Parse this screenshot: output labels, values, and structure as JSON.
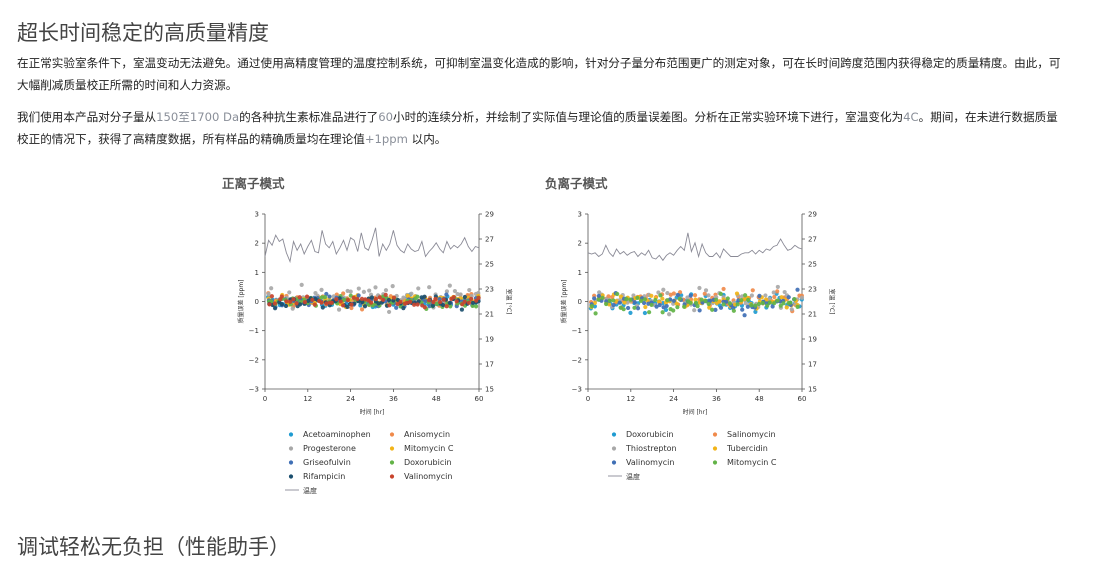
{
  "page": {
    "title": "超长时间稳定的高质量精度",
    "paragraph1": "在正常实验室条件下，室温变动无法避免。通过使用高精度管理的温度控制系统，可抑制室温变化造成的影响，针对分子量分布范围更广的测定对象，可在长时间跨度范围内获得稳定的质量精度。由此，可大幅削减质量校正所需的时间和人力资源。",
    "paragraph2": {
      "part1": "我们使用本产品对分子量从",
      "range": "150至1700 Da",
      "part2": "的各种抗生素标准品进行了",
      "hours": "60",
      "part3": "小时的连续分析，并绘制了实际值与理论值的质量误差图。分析在正常实验环境下进行，室温变化为",
      "temp": "4C",
      "part4": "。期间，在未进行数据质量校正的情况下，获得了高精度数据，所有样品的精确质量均在理论值",
      "ppm": "+1ppm",
      "part5": " 以内。"
    },
    "next_section_title": "调试轻松无负担（性能助手）"
  },
  "colors": {
    "temperature_line": "#8a8a96",
    "axis": "#555555"
  },
  "chart_data": [
    {
      "type": "scatter",
      "title": "正离子模式",
      "xlabel": "时间 [hr]",
      "ylabel": "质量误差 [ppm]",
      "y2label": "室温 [°C]",
      "xlim": [
        0,
        60
      ],
      "ylim": [
        -3,
        3
      ],
      "y2lim": [
        15,
        29
      ],
      "xticks": [
        0,
        12,
        24,
        36,
        48,
        60
      ],
      "yticks": [
        -3,
        -2,
        -1,
        0,
        1,
        2,
        3
      ],
      "y2ticks": [
        15,
        17,
        19,
        21,
        23,
        25,
        27,
        29
      ],
      "series": [
        {
          "name": "Acetoaminophen",
          "color": "#1f9bd1",
          "center": 0.0,
          "spread": 0.12,
          "seed": 11
        },
        {
          "name": "Anisomycin",
          "color": "#f08a4b",
          "center": 0.05,
          "spread": 0.12,
          "seed": 12
        },
        {
          "name": "Progesterone",
          "color": "#a8a8a8",
          "center": 0.15,
          "spread": 0.22,
          "seed": 13
        },
        {
          "name": "Mitomycin C",
          "color": "#f2b418",
          "center": 0.05,
          "spread": 0.1,
          "seed": 14
        },
        {
          "name": "Griseofulvin",
          "color": "#3f6fb5",
          "center": 0.0,
          "spread": 0.1,
          "seed": 15
        },
        {
          "name": "Doxorubicin",
          "color": "#62b347",
          "center": 0.0,
          "spread": 0.1,
          "seed": 16
        },
        {
          "name": "Rifampicin",
          "color": "#1a4e6e",
          "center": -0.05,
          "spread": 0.1,
          "seed": 17
        },
        {
          "name": "Valinomycin",
          "color": "#c8432c",
          "center": 0.0,
          "spread": 0.1,
          "seed": 18
        }
      ],
      "temperature": {
        "name": "温度",
        "x": [
          0,
          1,
          2,
          3,
          4,
          5,
          6,
          7,
          8,
          9,
          10,
          11,
          12,
          13,
          14,
          15,
          16,
          17,
          18,
          19,
          20,
          21,
          22,
          23,
          24,
          25,
          26,
          27,
          28,
          29,
          30,
          31,
          32,
          33,
          34,
          35,
          36,
          37,
          38,
          39,
          40,
          41,
          42,
          43,
          44,
          45,
          46,
          47,
          48,
          49,
          50,
          51,
          52,
          53,
          54,
          55,
          56,
          57,
          58,
          59,
          60
        ],
        "y": [
          25.6,
          26.9,
          26.5,
          27.3,
          26.8,
          27.0,
          25.9,
          25.2,
          26.8,
          26.1,
          26.6,
          25.8,
          26.4,
          26.9,
          26.0,
          25.9,
          27.7,
          26.6,
          26.3,
          26.8,
          25.8,
          26.3,
          26.9,
          26.1,
          27.1,
          26.9,
          26.0,
          27.5,
          26.3,
          26.1,
          26.9,
          27.9,
          25.6,
          26.6,
          26.1,
          26.6,
          27.7,
          26.5,
          26.1,
          25.9,
          26.6,
          26.2,
          26.0,
          26.1,
          26.8,
          25.6,
          26.0,
          26.3,
          26.7,
          26.2,
          25.9,
          26.8,
          26.2,
          26.5,
          26.3,
          26.6,
          27.1,
          26.4,
          26.0,
          26.4,
          26.3
        ]
      }
    },
    {
      "type": "scatter",
      "title": "负离子模式",
      "xlabel": "时间 [hr]",
      "ylabel": "质量误差 [ppm]",
      "y2label": "室温 [°C]",
      "xlim": [
        0,
        60
      ],
      "ylim": [
        -3,
        3
      ],
      "y2lim": [
        15,
        29
      ],
      "xticks": [
        0,
        12,
        24,
        36,
        48,
        60
      ],
      "yticks": [
        -3,
        -2,
        -1,
        0,
        1,
        2,
        3
      ],
      "y2ticks": [
        15,
        17,
        19,
        21,
        23,
        25,
        27,
        29
      ],
      "series": [
        {
          "name": "Doxorubicin",
          "color": "#1f9bd1",
          "center": 0.0,
          "spread": 0.14,
          "seed": 21
        },
        {
          "name": "Salinomycin",
          "color": "#f08a4b",
          "center": 0.05,
          "spread": 0.14,
          "seed": 22
        },
        {
          "name": "Thiostrepton",
          "color": "#a8a8a8",
          "center": 0.05,
          "spread": 0.18,
          "seed": 23
        },
        {
          "name": "Tubercidin",
          "color": "#f2b418",
          "center": 0.0,
          "spread": 0.12,
          "seed": 24
        },
        {
          "name": "Valinomycin",
          "color": "#3f6fb5",
          "center": -0.05,
          "spread": 0.14,
          "seed": 25
        },
        {
          "name": "Mitomycin C",
          "color": "#62b347",
          "center": -0.05,
          "spread": 0.16,
          "seed": 26
        }
      ],
      "temperature": {
        "name": "温度",
        "x": [
          0,
          1,
          2,
          3,
          4,
          5,
          6,
          7,
          8,
          9,
          10,
          11,
          12,
          13,
          14,
          15,
          16,
          17,
          18,
          19,
          20,
          21,
          22,
          23,
          24,
          25,
          26,
          27,
          28,
          29,
          30,
          31,
          32,
          33,
          34,
          35,
          36,
          37,
          38,
          39,
          40,
          41,
          42,
          43,
          44,
          45,
          46,
          47,
          48,
          49,
          50,
          51,
          52,
          53,
          54,
          55,
          56,
          57,
          58,
          59,
          60
        ],
        "y": [
          25.9,
          25.8,
          25.9,
          25.6,
          25.8,
          26.5,
          25.9,
          25.6,
          26.2,
          25.8,
          26.0,
          25.7,
          25.9,
          26.0,
          25.6,
          25.9,
          25.7,
          26.1,
          25.5,
          25.4,
          25.7,
          25.3,
          25.7,
          25.9,
          25.7,
          26.1,
          26.4,
          26.1,
          27.5,
          26.0,
          26.7,
          25.6,
          26.6,
          25.9,
          25.6,
          25.6,
          25.9,
          25.5,
          26.2,
          25.9,
          25.6,
          25.6,
          25.6,
          25.8,
          25.9,
          25.9,
          26.1,
          25.8,
          26.1,
          25.9,
          26.2,
          26.1,
          26.4,
          26.5,
          27.0,
          26.5,
          26.1,
          26.2,
          26.5,
          26.3,
          26.2
        ]
      }
    }
  ]
}
